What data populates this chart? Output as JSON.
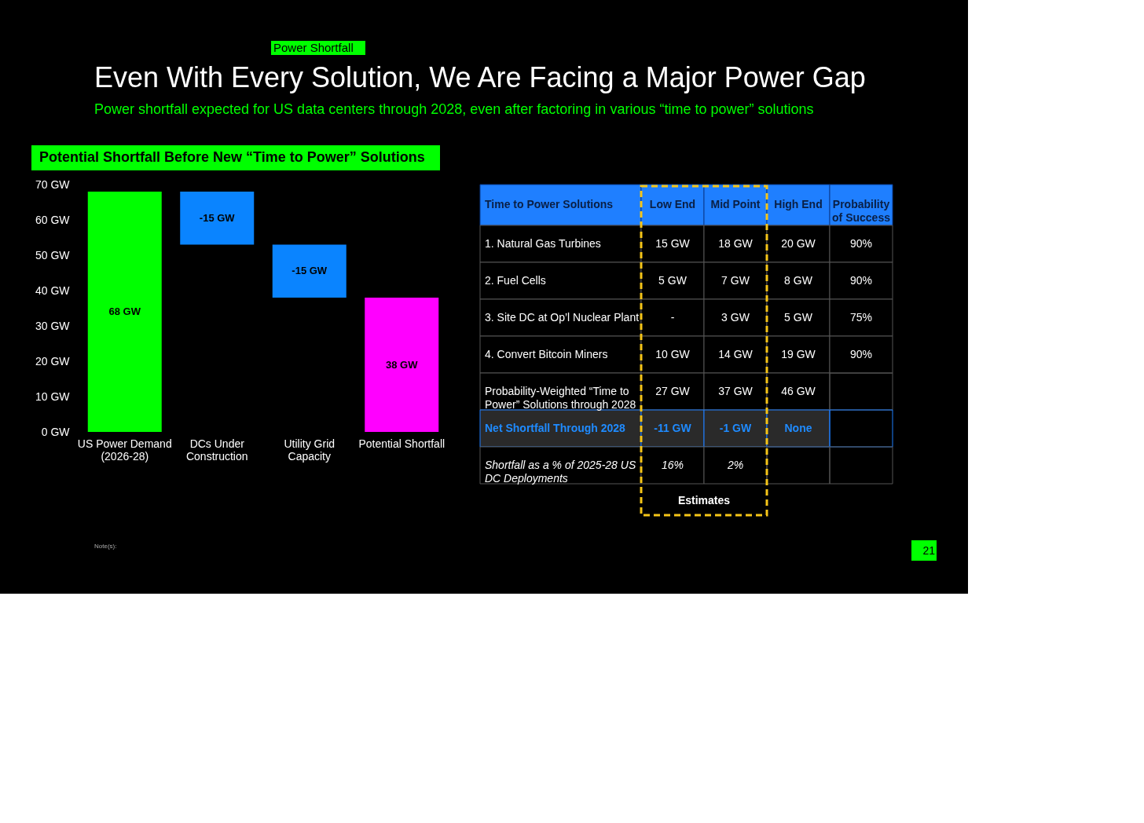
{
  "chart_data": [
    {
      "type": "other",
      "title": "Even With Every Solution, We Are Facing a Major Power Gap",
      "subtitle": "Power shortfall expected for US data centers through 2028, even after factoring in various “time to power” solutions",
      "annotations": [
        "Power Shortfall",
        "Note(s):",
        "21"
      ]
    },
    {
      "type": "bar",
      "title": "Potential Shortfall Before New “Time to Power” Solutions",
      "categories": [
        "US Power Demand\n(2026-28)",
        "DCs Under\nConstruction",
        "Utility Grid\nCapacity",
        "Potential Shortfall"
      ],
      "values": [
        68,
        -15,
        -15,
        38
      ],
      "base": [
        0,
        68,
        53,
        0
      ],
      "colors": [
        "#00ff00",
        "#0a84ff",
        "#0a84ff",
        "#ff00ff"
      ],
      "value_labels": [
        "68 GW",
        "-15 GW",
        "-15 GW",
        "38 GW"
      ],
      "ylim": [
        0,
        70
      ],
      "yticks": [
        {
          "value": 0,
          "label": "0 GW"
        },
        {
          "value": 10,
          "label": "10 GW"
        },
        {
          "value": 20,
          "label": "20 GW"
        },
        {
          "value": 30,
          "label": "30 GW"
        },
        {
          "value": 40,
          "label": "40 GW"
        },
        {
          "value": 50,
          "label": "50 GW"
        },
        {
          "value": 60,
          "label": "60 GW"
        },
        {
          "value": 70,
          "label": "70 GW"
        }
      ],
      "grid": false
    },
    {
      "type": "other",
      "categories": [
        "Time to Power Solutions",
        "Low End",
        "Mid Point",
        "High End",
        "Probability of Success"
      ],
      "y_categories": [
        "1. Natural Gas Turbines",
        "2. Fuel Cells",
        "3. Site DC at Op’l Nuclear Plant",
        "4. Convert Bitcoin Miners",
        "Probability-Weighted “Time to Power” Solutions through 2028",
        "Net Shortfall Through 2028",
        "Shortfall as a % of 2025-28 US DC Deployments"
      ],
      "cell_labels": [
        [
          "15 GW",
          "18 GW",
          "20 GW",
          "90%"
        ],
        [
          "5 GW",
          "7 GW",
          "8 GW",
          "90%"
        ],
        [
          "-",
          "3 GW",
          "5 GW",
          "75%"
        ],
        [
          "10 GW",
          "14 GW",
          "19 GW",
          "90%"
        ],
        [
          "27 GW",
          "37 GW",
          "46 GW",
          null
        ],
        [
          "-11 GW",
          "-1 GW",
          "None",
          null
        ],
        [
          "16%",
          "2%",
          null,
          null
        ]
      ],
      "annotations": [
        "Estimates"
      ]
    }
  ]
}
